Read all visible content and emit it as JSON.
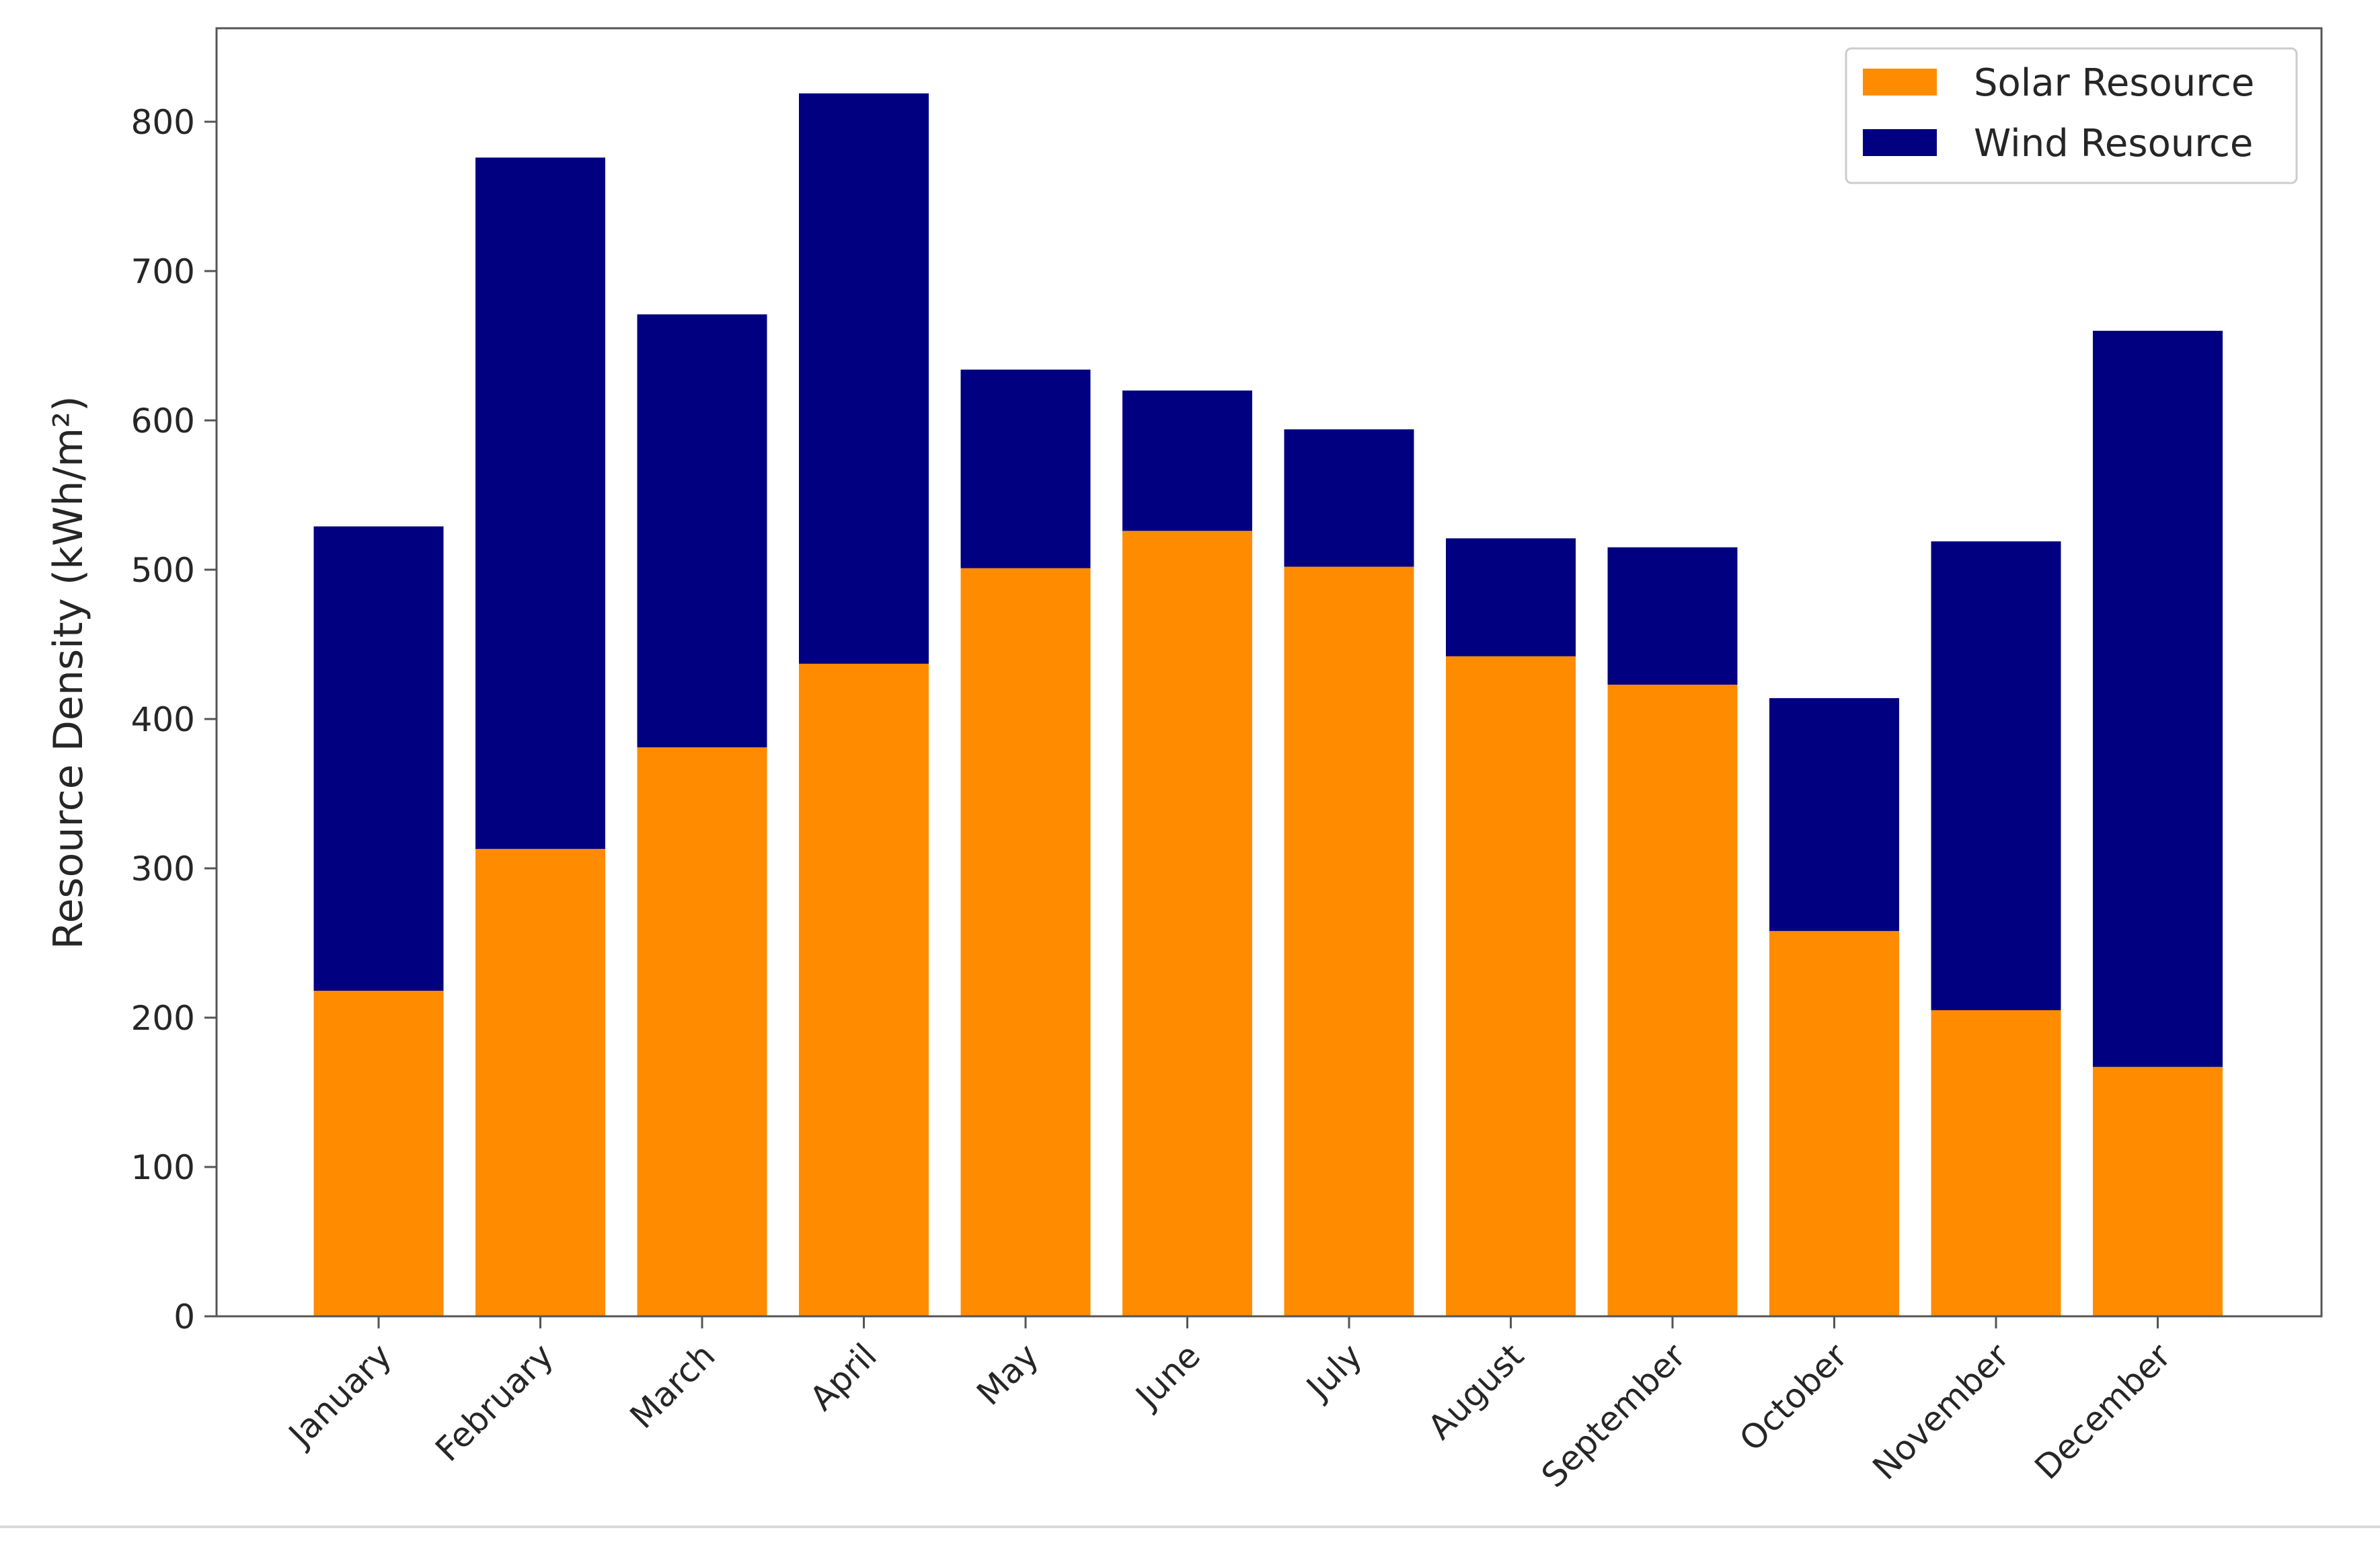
{
  "chart_data": {
    "type": "bar",
    "stacked": true,
    "title": "",
    "xlabel": "",
    "ylabel": "Resource Density (kWh/m²)",
    "ylim": [
      0,
      860
    ],
    "yticks": [
      0,
      100,
      200,
      300,
      400,
      500,
      600,
      700,
      800
    ],
    "categories": [
      "January",
      "February",
      "March",
      "April",
      "May",
      "June",
      "July",
      "August",
      "September",
      "October",
      "November",
      "December"
    ],
    "series": [
      {
        "name": "Solar Resource",
        "color": "#ff8c00",
        "values": [
          218,
          313,
          381,
          437,
          501,
          526,
          502,
          442,
          423,
          258,
          205,
          167
        ]
      },
      {
        "name": "Wind Resource",
        "color": "#000080",
        "values": [
          311,
          463,
          290,
          382,
          133,
          94,
          92,
          79,
          92,
          156,
          314,
          493
        ]
      }
    ],
    "legend_position": "top-right",
    "grid": false
  }
}
